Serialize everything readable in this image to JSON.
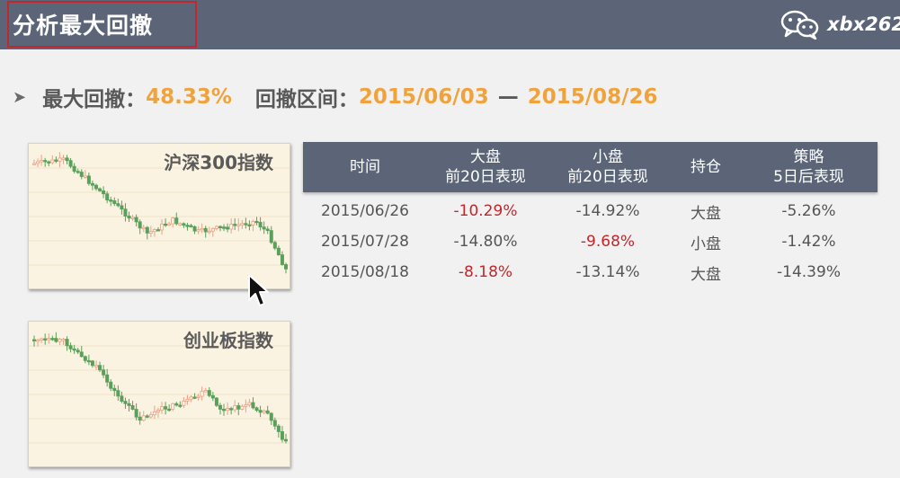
{
  "header": {
    "title": "分析最大回撤",
    "brand_text": "xbx262"
  },
  "summary": {
    "max_drawdown_label": "最大回撤：",
    "max_drawdown_value": "48.33%",
    "range_label": "回撤区间：",
    "range_start": "2015/06/03",
    "range_dash": "—",
    "range_end": "2015/08/26"
  },
  "charts": [
    {
      "title": "沪深300指数"
    },
    {
      "title": "创业板指数"
    }
  ],
  "table": {
    "headers": [
      [
        "时间"
      ],
      [
        "大盘",
        "前20日表现"
      ],
      [
        "小盘",
        "前20日表现"
      ],
      [
        "持仓"
      ],
      [
        "策略",
        "5日后表现"
      ]
    ],
    "rows": [
      {
        "date": "2015/06/26",
        "large": "-10.29%",
        "small": "-14.92%",
        "position": "大盘",
        "strategy": "-5.26%"
      },
      {
        "date": "2015/07/28",
        "large": "-14.80%",
        "small": "-9.68%",
        "position": "小盘",
        "strategy": "-1.42%"
      },
      {
        "date": "2015/08/18",
        "large": "-8.18%",
        "small": "-13.14%",
        "position": "大盘",
        "strategy": "-14.39%"
      }
    ]
  },
  "colors": {
    "header_bg": "#5b6577",
    "accent": "#f0a23d",
    "highlight_red": "#c0282d",
    "candle_up": "#e8a38a",
    "candle_down": "#5aa05a"
  }
}
